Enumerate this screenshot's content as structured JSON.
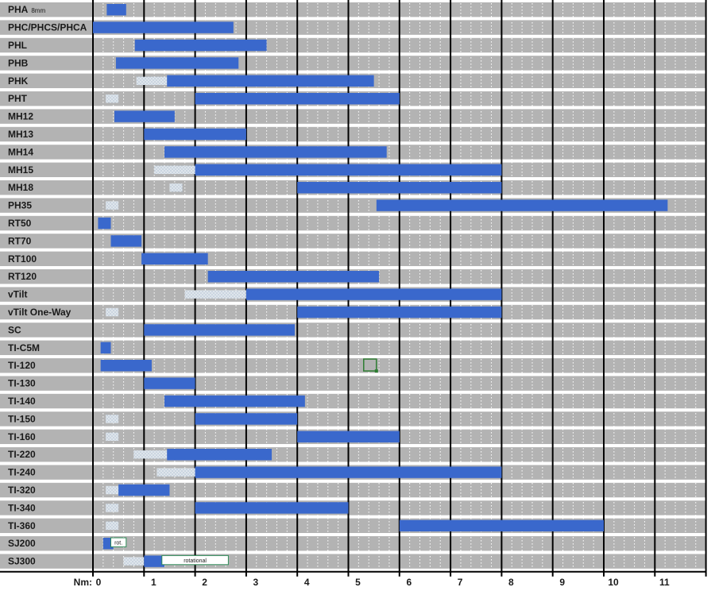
{
  "chart_data": {
    "type": "bar",
    "subtype": "floating-range (Gantt-style)",
    "x_axis": {
      "label": "Nm:",
      "ticks": [
        0,
        1,
        2,
        3,
        4,
        5,
        6,
        7,
        8,
        9,
        10,
        11
      ],
      "range": [
        0,
        12
      ],
      "minor_gridlines": 4
    },
    "colors": {
      "range_bar": "#3a68cc",
      "dotted_range": "#dfe6ec",
      "row_background": "#b3b3b3",
      "row_separator": "#ffffff",
      "major_gridline": "#000000",
      "minor_gridline": "#ffffff",
      "annotation_border": "#2e8b57",
      "marker": "#2e7d32"
    },
    "rows": [
      {
        "label": "PHA",
        "sublabel": "8mm",
        "bar": [
          0.27,
          0.65
        ]
      },
      {
        "label": "PHC/PHCS/PHCA",
        "bar": [
          0.0,
          2.75
        ]
      },
      {
        "label": "PHL",
        "bar": [
          0.82,
          3.4
        ]
      },
      {
        "label": "PHB",
        "bar": [
          0.45,
          2.85
        ]
      },
      {
        "label": "PHK",
        "bar": [
          1.45,
          5.5
        ],
        "dotted": [
          0.85,
          1.45
        ]
      },
      {
        "label": "PHT",
        "bar": [
          2.0,
          6.0
        ],
        "dotted": [
          0.25,
          0.5
        ]
      },
      {
        "label": "MH12",
        "bar": [
          0.42,
          1.6
        ]
      },
      {
        "label": "MH13",
        "bar": [
          1.0,
          3.0
        ]
      },
      {
        "label": "MH14",
        "bar": [
          1.4,
          5.75
        ]
      },
      {
        "label": "MH15",
        "bar": [
          2.0,
          8.0
        ],
        "dotted": [
          1.2,
          4.8
        ]
      },
      {
        "label": "MH18",
        "bar": [
          4.0,
          8.0
        ],
        "dotted": [
          1.5,
          1.75
        ]
      },
      {
        "label": "PH35",
        "bar": [
          5.55,
          11.25
        ],
        "dotted": [
          0.25,
          0.5
        ]
      },
      {
        "label": "RT50",
        "bar": [
          0.1,
          0.35
        ]
      },
      {
        "label": "RT70",
        "bar": [
          0.35,
          0.95
        ]
      },
      {
        "label": "RT100",
        "bar": [
          0.95,
          2.25
        ]
      },
      {
        "label": "RT120",
        "bar": [
          2.25,
          5.6
        ]
      },
      {
        "label": "vTilt",
        "bar": [
          3.0,
          8.0
        ],
        "dotted": [
          1.8,
          3.0
        ]
      },
      {
        "label": "vTilt One-Way",
        "bar": [
          4.0,
          8.0
        ],
        "dotted": [
          0.25,
          0.5
        ]
      },
      {
        "label": "SC",
        "bar": [
          1.0,
          3.95
        ]
      },
      {
        "label": "TI-C5M",
        "bar": [
          0.15,
          0.35
        ]
      },
      {
        "label": "TI-120",
        "bar": [
          0.15,
          1.15
        ]
      },
      {
        "label": "TI-130",
        "bar": [
          1.0,
          2.0
        ]
      },
      {
        "label": "TI-140",
        "bar": [
          1.4,
          4.15
        ]
      },
      {
        "label": "TI-150",
        "bar": [
          2.0,
          4.0
        ],
        "dotted": [
          0.25,
          0.5
        ]
      },
      {
        "label": "TI-160",
        "bar": [
          4.0,
          6.0
        ],
        "dotted": [
          0.25,
          0.5
        ]
      },
      {
        "label": "TI-220",
        "bar": [
          1.45,
          3.5
        ],
        "dotted": [
          0.8,
          1.45
        ]
      },
      {
        "label": "TI-240",
        "bar": [
          2.0,
          8.0
        ],
        "dotted": [
          1.25,
          4.8
        ]
      },
      {
        "label": "TI-320",
        "bar": [
          0.5,
          1.5
        ],
        "dotted": [
          0.25,
          0.5
        ]
      },
      {
        "label": "TI-340",
        "bar": [
          2.0,
          5.0
        ],
        "dotted": [
          0.25,
          0.5
        ]
      },
      {
        "label": "TI-360",
        "bar": [
          6.0,
          10.0
        ],
        "dotted": [
          0.25,
          0.5
        ]
      },
      {
        "label": "SJ200",
        "bar": [
          0.2,
          0.4
        ],
        "annotation": {
          "text": "rot.",
          "range": [
            0.35,
            0.65
          ]
        }
      },
      {
        "label": "SJ300",
        "bar": [
          1.0,
          1.4
        ],
        "dotted": [
          0.6,
          1.0
        ],
        "annotation": {
          "text": "rotational",
          "range": [
            1.35,
            2.65
          ]
        }
      }
    ],
    "marker": {
      "row": "TI-120",
      "x": 5.3
    }
  }
}
